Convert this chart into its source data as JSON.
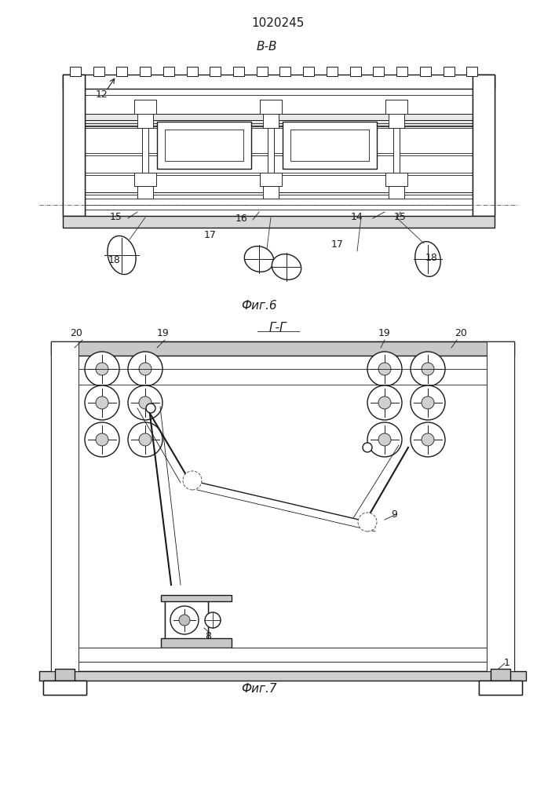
{
  "title": "1020245",
  "fig6_label": "В-В",
  "fig7_label": "Г-Г",
  "fig6_caption": "Фиг.6",
  "fig7_caption": "Фиг.7",
  "bg_color": "#f5f5f0",
  "line_color": "#1a1a1a",
  "hatch_color": "#1a1a1a"
}
